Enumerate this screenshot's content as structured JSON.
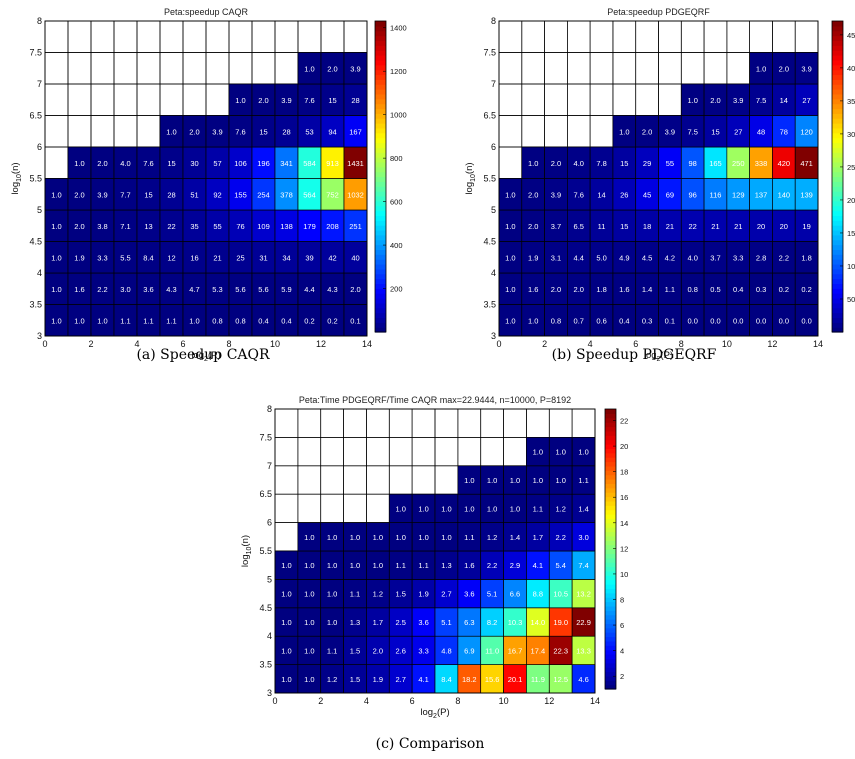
{
  "captions": [
    "(a) Speedup CAQR",
    "(b) Speedup PDGEQRF",
    "(c) Comparison"
  ],
  "chart_data": [
    {
      "type": "heatmap",
      "title": "Peta:speedup CAQR",
      "xlabel": "log2(P)",
      "ylabel": "log10(n)",
      "xlim": [
        0,
        14
      ],
      "ylim": [
        3,
        8
      ],
      "x_ticks": [
        "0",
        "2",
        "4",
        "6",
        "8",
        "10",
        "12",
        "14"
      ],
      "y_ticks": [
        "3",
        "3.5",
        "4",
        "4.5",
        "5",
        "5.5",
        "6",
        "6.5",
        "7",
        "7.5",
        "8"
      ],
      "colorbar": {
        "min": 0,
        "max": 1431,
        "ticks": [
          "200",
          "400",
          "600",
          "800",
          "1000",
          "1200",
          "1400"
        ]
      },
      "rows": [
        {
          "log10n": 3.0,
          "start_col": 0,
          "values": [
            "1.0",
            "1.0",
            "1.0",
            "1.1",
            "1.1",
            "1.1",
            "1.0",
            "0.8",
            "0.8",
            "0.4",
            "0.4",
            "0.2",
            "0.2",
            "0.1"
          ]
        },
        {
          "log10n": 3.5,
          "start_col": 0,
          "values": [
            "1.0",
            "1.6",
            "2.2",
            "3.0",
            "3.6",
            "4.3",
            "4.7",
            "5.3",
            "5.6",
            "5.6",
            "5.9",
            "4.4",
            "4.3",
            "2.0"
          ]
        },
        {
          "log10n": 4.0,
          "start_col": 0,
          "values": [
            "1.0",
            "1.9",
            "3.3",
            "5.5",
            "8.4",
            "12",
            "16",
            "21",
            "25",
            "31",
            "34",
            "39",
            "42",
            "40"
          ]
        },
        {
          "log10n": 4.5,
          "start_col": 0,
          "values": [
            "1.0",
            "2.0",
            "3.8",
            "7.1",
            "13",
            "22",
            "35",
            "55",
            "76",
            "109",
            "138",
            "179",
            "208",
            "251"
          ]
        },
        {
          "log10n": 5.0,
          "start_col": 0,
          "values": [
            "1.0",
            "2.0",
            "3.9",
            "7.7",
            "15",
            "28",
            "51",
            "92",
            "155",
            "254",
            "378",
            "564",
            "752",
            "1032"
          ]
        },
        {
          "log10n": 5.5,
          "start_col": 1,
          "values": [
            "1.0",
            "2.0",
            "4.0",
            "7.6",
            "15",
            "30",
            "57",
            "106",
            "196",
            "341",
            "584",
            "913",
            "1431"
          ]
        },
        {
          "log10n": 6.0,
          "start_col": 5,
          "values": [
            "1.0",
            "2.0",
            "3.9",
            "7.6",
            "15",
            "28",
            "53",
            "94",
            "167"
          ]
        },
        {
          "log10n": 6.5,
          "start_col": 8,
          "values": [
            "1.0",
            "2.0",
            "3.9",
            "7.6",
            "15",
            "28"
          ]
        },
        {
          "log10n": 7.0,
          "start_col": 11,
          "values": [
            "1.0",
            "2.0",
            "3.9"
          ]
        }
      ]
    },
    {
      "type": "heatmap",
      "title": "Peta:speedup PDGEQRF",
      "xlabel": "log2(P)",
      "ylabel": "log10(n)",
      "xlim": [
        0,
        14
      ],
      "ylim": [
        3,
        8
      ],
      "x_ticks": [
        "0",
        "2",
        "4",
        "6",
        "8",
        "10",
        "12",
        "14"
      ],
      "y_ticks": [
        "3",
        "3.5",
        "4",
        "4.5",
        "5",
        "5.5",
        "6",
        "6.5",
        "7",
        "7.5",
        "8"
      ],
      "colorbar": {
        "min": 0,
        "max": 471,
        "ticks": [
          "50",
          "100",
          "150",
          "200",
          "250",
          "300",
          "350",
          "400",
          "450"
        ]
      },
      "rows": [
        {
          "log10n": 3.0,
          "start_col": 0,
          "values": [
            "1.0",
            "1.0",
            "0.8",
            "0.7",
            "0.6",
            "0.4",
            "0.3",
            "0.1",
            "0.0",
            "0.0",
            "0.0",
            "0.0",
            "0.0",
            "0.0"
          ]
        },
        {
          "log10n": 3.5,
          "start_col": 0,
          "values": [
            "1.0",
            "1.6",
            "2.0",
            "2.0",
            "1.8",
            "1.6",
            "1.4",
            "1.1",
            "0.8",
            "0.5",
            "0.4",
            "0.3",
            "0.2",
            "0.2"
          ]
        },
        {
          "log10n": 4.0,
          "start_col": 0,
          "values": [
            "1.0",
            "1.9",
            "3.1",
            "4.4",
            "5.0",
            "4.9",
            "4.5",
            "4.2",
            "4.0",
            "3.7",
            "3.3",
            "2.8",
            "2.2",
            "1.8"
          ]
        },
        {
          "log10n": 4.5,
          "start_col": 0,
          "values": [
            "1.0",
            "2.0",
            "3.7",
            "6.5",
            "11",
            "15",
            "18",
            "21",
            "22",
            "21",
            "21",
            "20",
            "20",
            "19"
          ]
        },
        {
          "log10n": 5.0,
          "start_col": 0,
          "values": [
            "1.0",
            "2.0",
            "3.9",
            "7.6",
            "14",
            "26",
            "45",
            "69",
            "96",
            "116",
            "129",
            "137",
            "140",
            "139"
          ]
        },
        {
          "log10n": 5.5,
          "start_col": 1,
          "values": [
            "1.0",
            "2.0",
            "4.0",
            "7.8",
            "15",
            "29",
            "55",
            "98",
            "165",
            "250",
            "338",
            "420",
            "471"
          ]
        },
        {
          "log10n": 6.0,
          "start_col": 5,
          "values": [
            "1.0",
            "2.0",
            "3.9",
            "7.5",
            "15",
            "27",
            "48",
            "78",
            "120"
          ]
        },
        {
          "log10n": 6.5,
          "start_col": 8,
          "values": [
            "1.0",
            "2.0",
            "3.9",
            "7.5",
            "14",
            "27"
          ]
        },
        {
          "log10n": 7.0,
          "start_col": 11,
          "values": [
            "1.0",
            "2.0",
            "3.9"
          ]
        }
      ]
    },
    {
      "type": "heatmap",
      "title": "Peta:Time PDGEQRF/Time CAQR  max=22.9444, n=10000, P=8192",
      "xlabel": "log2(P)",
      "ylabel": "log10(n)",
      "xlim": [
        0,
        14
      ],
      "ylim": [
        3,
        8
      ],
      "x_ticks": [
        "0",
        "2",
        "4",
        "6",
        "8",
        "10",
        "12",
        "14"
      ],
      "y_ticks": [
        "3",
        "3.5",
        "4",
        "4.5",
        "5",
        "5.5",
        "6",
        "6.5",
        "7",
        "7.5",
        "8"
      ],
      "colorbar": {
        "min": 1,
        "max": 22.9,
        "ticks": [
          "2",
          "4",
          "6",
          "8",
          "10",
          "12",
          "14",
          "16",
          "18",
          "20",
          "22"
        ]
      },
      "rows": [
        {
          "log10n": 3.0,
          "start_col": 0,
          "values": [
            "1.0",
            "1.0",
            "1.2",
            "1.5",
            "1.9",
            "2.7",
            "4.1",
            "8.4",
            "18.2",
            "15.6",
            "20.1",
            "11.9",
            "12.5",
            "4.6"
          ]
        },
        {
          "log10n": 3.5,
          "start_col": 0,
          "values": [
            "1.0",
            "1.0",
            "1.1",
            "1.5",
            "2.0",
            "2.6",
            "3.3",
            "4.8",
            "6.9",
            "11.0",
            "16.7",
            "17.4",
            "22.3",
            "13.3"
          ]
        },
        {
          "log10n": 4.0,
          "start_col": 0,
          "values": [
            "1.0",
            "1.0",
            "1.0",
            "1.3",
            "1.7",
            "2.5",
            "3.6",
            "5.1",
            "6.3",
            "8.2",
            "10.3",
            "14.0",
            "19.0",
            "22.9"
          ]
        },
        {
          "log10n": 4.5,
          "start_col": 0,
          "values": [
            "1.0",
            "1.0",
            "1.0",
            "1.1",
            "1.2",
            "1.5",
            "1.9",
            "2.7",
            "3.6",
            "5.1",
            "6.6",
            "8.8",
            "10.5",
            "13.2"
          ]
        },
        {
          "log10n": 5.0,
          "start_col": 0,
          "values": [
            "1.0",
            "1.0",
            "1.0",
            "1.0",
            "1.0",
            "1.1",
            "1.1",
            "1.3",
            "1.6",
            "2.2",
            "2.9",
            "4.1",
            "5.4",
            "7.4"
          ]
        },
        {
          "log10n": 5.5,
          "start_col": 1,
          "values": [
            "1.0",
            "1.0",
            "1.0",
            "1.0",
            "1.0",
            "1.0",
            "1.0",
            "1.1",
            "1.2",
            "1.4",
            "1.7",
            "2.2",
            "3.0"
          ]
        },
        {
          "log10n": 6.0,
          "start_col": 5,
          "values": [
            "1.0",
            "1.0",
            "1.0",
            "1.0",
            "1.0",
            "1.0",
            "1.1",
            "1.2",
            "1.4"
          ]
        },
        {
          "log10n": 6.5,
          "start_col": 8,
          "values": [
            "1.0",
            "1.0",
            "1.0",
            "1.0",
            "1.0",
            "1.1"
          ]
        },
        {
          "log10n": 7.0,
          "start_col": 11,
          "values": [
            "1.0",
            "1.0",
            "1.0"
          ]
        }
      ]
    }
  ]
}
